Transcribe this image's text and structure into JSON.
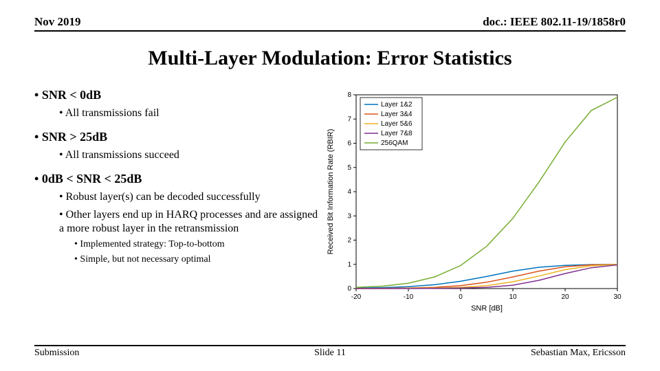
{
  "header": {
    "date": "Nov 2019",
    "doc": "doc.: IEEE 802.11-19/1858r0"
  },
  "title": "Multi-Layer Modulation: Error Statistics",
  "bullets": {
    "b1": "SNR < 0dB",
    "b1_1": "All transmissions fail",
    "b2": "SNR > 25dB",
    "b2_1": "All transmissions succeed",
    "b3": "0dB < SNR < 25dB",
    "b3_1": "Robust layer(s) can be decoded successfully",
    "b3_2": "Other layers end up in HARQ processes and are assigned a more robust layer in the retransmission",
    "b3_2_a": "Implemented strategy: Top-to-bottom",
    "b3_2_b": "Simple, but not necessary optimal"
  },
  "footer": {
    "left": "Submission",
    "center": "Slide 11",
    "right": "Sebastian Max, Ericsson"
  },
  "chart": {
    "type": "line",
    "xlabel": "SNR [dB]",
    "ylabel": "Received Bit Information Rate (RBIR)",
    "xlim": [
      -20,
      30
    ],
    "xtick_step": 10,
    "ylim": [
      0,
      8
    ],
    "ytick_step": 1,
    "background_color": "#ffffff",
    "axis_color": "#000000",
    "label_fontsize": 11,
    "tick_fontsize": 10,
    "linewidth": 1.5,
    "legend": {
      "position": "top-left-inside",
      "border_color": "#000000",
      "bg_color": "#ffffff"
    },
    "series": [
      {
        "name": "Layer 1&2",
        "color": "#0072bd",
        "x": [
          -20,
          -15,
          -10,
          -5,
          0,
          5,
          10,
          15,
          20,
          25,
          30
        ],
        "y": [
          0.02,
          0.04,
          0.08,
          0.16,
          0.3,
          0.5,
          0.72,
          0.88,
          0.96,
          0.99,
          1.0
        ]
      },
      {
        "name": "Layer 3&4",
        "color": "#d95319",
        "x": [
          -20,
          -15,
          -10,
          -5,
          0,
          5,
          10,
          15,
          20,
          25,
          30
        ],
        "y": [
          0.0,
          0.01,
          0.02,
          0.05,
          0.12,
          0.26,
          0.48,
          0.72,
          0.9,
          0.98,
          1.0
        ]
      },
      {
        "name": "Layer 5&6",
        "color": "#edb120",
        "x": [
          -20,
          -15,
          -10,
          -5,
          0,
          5,
          10,
          15,
          20,
          25,
          30
        ],
        "y": [
          0.0,
          0.0,
          0.01,
          0.02,
          0.05,
          0.12,
          0.28,
          0.52,
          0.78,
          0.94,
          1.0
        ]
      },
      {
        "name": "Layer 7&8",
        "color": "#7e2f8e",
        "x": [
          -20,
          -15,
          -10,
          -5,
          0,
          5,
          10,
          15,
          20,
          25,
          30
        ],
        "y": [
          0.0,
          0.0,
          0.0,
          0.01,
          0.02,
          0.05,
          0.14,
          0.34,
          0.62,
          0.86,
          0.98
        ]
      },
      {
        "name": "256QAM",
        "color": "#77ac30",
        "x": [
          -20,
          -15,
          -10,
          -5,
          0,
          5,
          10,
          15,
          20,
          25,
          30
        ],
        "y": [
          0.05,
          0.1,
          0.22,
          0.48,
          0.95,
          1.75,
          2.9,
          4.4,
          6.05,
          7.35,
          7.9
        ]
      }
    ]
  }
}
